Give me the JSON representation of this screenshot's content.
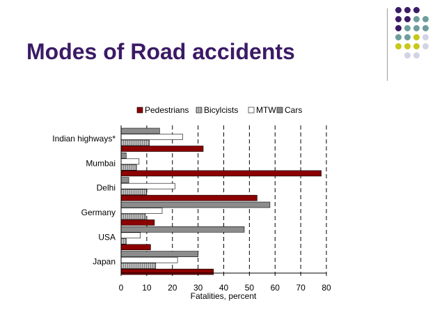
{
  "slide": {
    "title": "Modes of Road accidents"
  },
  "decoration": {
    "dot_colors": {
      "purple": "#3b1a66",
      "teal": "#6f9c9c",
      "yellow": "#c8c81a",
      "lavender": "#d3d3e6"
    },
    "dot_rows": [
      [
        "purple",
        "purple",
        "purple",
        ""
      ],
      [
        "purple",
        "purple",
        "teal",
        "teal"
      ],
      [
        "purple",
        "teal",
        "teal",
        "teal"
      ],
      [
        "teal",
        "teal",
        "yellow",
        "lavender"
      ],
      [
        "yellow",
        "yellow",
        "yellow",
        "lavender"
      ],
      [
        "",
        "lavender",
        "lavender",
        ""
      ]
    ]
  },
  "chart_data": {
    "type": "bar",
    "orientation": "horizontal",
    "categories": [
      "Indian highways*",
      "Mumbai",
      "Delhi",
      "Germany",
      "USA",
      "Japan"
    ],
    "series": [
      {
        "name": "Pedestrians",
        "color": "#8b0000",
        "pattern": "solid",
        "values": [
          32,
          78,
          53,
          13,
          11.5,
          36
        ]
      },
      {
        "name": "Bicylcists",
        "color": "#7f7f7f",
        "pattern": "hatched",
        "values": [
          11,
          6,
          10,
          9.5,
          2,
          13.5
        ]
      },
      {
        "name": "MTW",
        "color": "#ffffff",
        "pattern": "outline",
        "values": [
          24,
          7,
          21,
          16,
          7.5,
          22
        ]
      },
      {
        "name": "Cars",
        "color": "#8c8c8c",
        "pattern": "solid",
        "values": [
          15,
          2,
          3,
          58,
          48,
          30
        ]
      }
    ],
    "xlabel": "Fatalities, percent",
    "ylabel": "",
    "xlim": [
      0,
      80
    ],
    "xticks": [
      0,
      10,
      20,
      30,
      40,
      50,
      60,
      70,
      80
    ],
    "grid": "vertical dashed",
    "legend": "top"
  }
}
